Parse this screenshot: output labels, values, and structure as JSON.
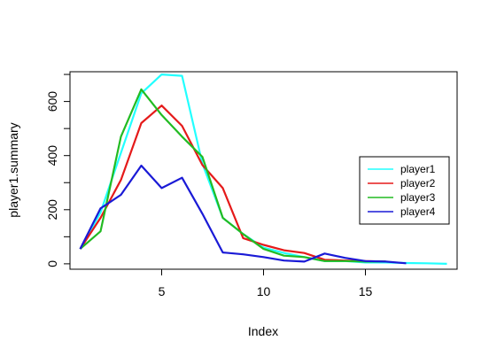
{
  "chart_data": {
    "type": "line",
    "title": "",
    "xlabel": "Index",
    "ylabel": "player1.summary",
    "xlim": [
      0.5,
      19.5
    ],
    "ylim": [
      -20,
      710
    ],
    "xticks": [
      5,
      10,
      15
    ],
    "yticks": [
      0,
      200,
      400,
      600
    ],
    "xtick_labels": [
      "5",
      "10",
      "15"
    ],
    "ytick_labels": [
      "0",
      "200",
      "400",
      "600"
    ],
    "grid": false,
    "legend_position": "right",
    "series": [
      {
        "name": "player1",
        "color": "#22ffff",
        "values": [
          55,
          190,
          410,
          630,
          700,
          695,
          370,
          170,
          110,
          60,
          40,
          25,
          10,
          10,
          5,
          5,
          3,
          2,
          0
        ]
      },
      {
        "name": "player2",
        "color": "#e51a1a",
        "values": [
          55,
          170,
          310,
          520,
          585,
          510,
          365,
          280,
          95,
          70,
          50,
          40,
          15,
          12,
          10,
          8
        ]
      },
      {
        "name": "player3",
        "color": "#22bb22",
        "values": [
          55,
          120,
          470,
          645,
          550,
          470,
          395,
          170,
          110,
          55,
          30,
          25,
          10,
          10,
          8,
          8
        ]
      },
      {
        "name": "player4",
        "color": "#1a1ad6",
        "values": [
          55,
          205,
          255,
          363,
          280,
          318,
          185,
          42,
          35,
          25,
          12,
          8,
          38,
          22,
          10,
          8,
          2
        ]
      }
    ]
  }
}
